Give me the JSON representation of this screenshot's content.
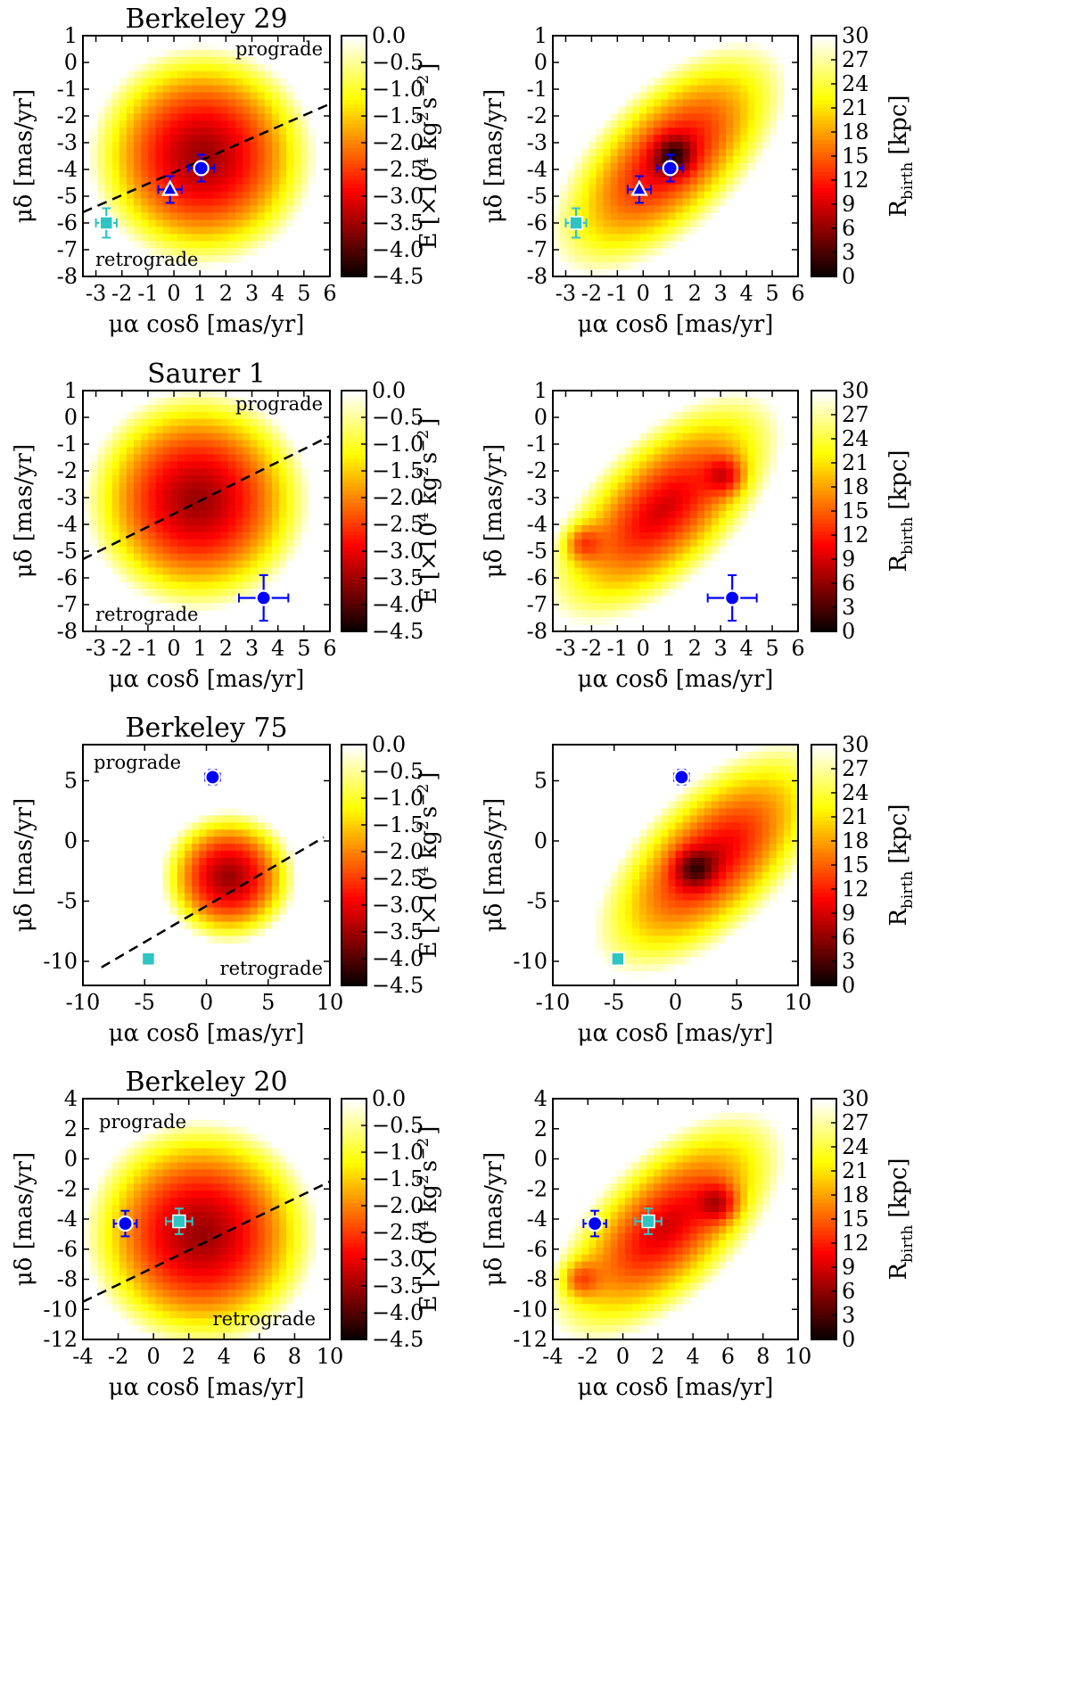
{
  "figure_title": "",
  "chart_data": [
    {
      "title": "Berkeley 29",
      "xlabel": "μα cosδ [mas/yr]",
      "ylabel": "μδ [mas/yr]",
      "xlim": [
        -3.5,
        6
      ],
      "ylim": [
        -8,
        1
      ],
      "xticks": [
        -3,
        -2,
        -1,
        0,
        1,
        2,
        3,
        4,
        5,
        6
      ],
      "yticks": [
        1,
        0,
        -1,
        -2,
        -3,
        -4,
        -5,
        -6,
        -7,
        -8
      ],
      "annotations": {
        "prograde": "prograde",
        "retrograde": "retrograde"
      },
      "divider_line": {
        "x": [
          -3.5,
          6
        ],
        "y": [
          -5.6,
          -1.55
        ]
      },
      "energy_map": {
        "center": [
          1.1,
          -3.5
        ],
        "radius": 4.4
      },
      "rbirth_map": {
        "center": [
          1.0,
          -3.6
        ],
        "dark_spots": [
          [
            1.2,
            -3.5
          ]
        ]
      },
      "points": [
        {
          "name": "cluster (blue circle)",
          "marker": "circle",
          "color": "#0000ff",
          "x": 1.05,
          "y": -3.95,
          "xerr": 0.5,
          "yerr": 0.5
        },
        {
          "name": "cluster (blue triangle)",
          "marker": "triangle",
          "color": "#0000ff",
          "x": -0.15,
          "y": -4.75,
          "xerr": 0.45,
          "yerr": 0.5
        },
        {
          "name": "cluster (cyan square)",
          "marker": "square",
          "color": "#2ec4c4",
          "x": -2.6,
          "y": -6.0,
          "xerr": 0.4,
          "yerr": 0.55
        }
      ]
    },
    {
      "title": "Saurer 1",
      "xlabel": "μα cosδ [mas/yr]",
      "ylabel": "μδ [mas/yr]",
      "xlim": [
        -3.5,
        6
      ],
      "ylim": [
        -8,
        1
      ],
      "xticks": [
        -3,
        -2,
        -1,
        0,
        1,
        2,
        3,
        4,
        5,
        6
      ],
      "yticks": [
        1,
        0,
        -1,
        -2,
        -3,
        -4,
        -5,
        -6,
        -7,
        -8
      ],
      "annotations": {
        "prograde": "prograde",
        "retrograde": "retrograde"
      },
      "divider_line": {
        "x": [
          -3.5,
          6
        ],
        "y": [
          -5.3,
          -0.7
        ]
      },
      "energy_map": {
        "center": [
          0.9,
          -3.1
        ],
        "radius": 4.4
      },
      "rbirth_map": {
        "center": [
          0.8,
          -3.4
        ],
        "dark_spots": [
          [
            3.2,
            -2.2
          ],
          [
            -2.4,
            -4.7
          ]
        ]
      },
      "points": [
        {
          "name": "cluster (blue circle)",
          "marker": "circle",
          "color": "#0000ff",
          "x": 3.45,
          "y": -6.75,
          "xerr": 0.95,
          "yerr": 0.85
        }
      ]
    },
    {
      "title": "Berkeley 75",
      "xlabel": "μα cosδ [mas/yr]",
      "ylabel": "μδ [mas/yr]",
      "xlim": [
        -10,
        10
      ],
      "ylim": [
        -12,
        8
      ],
      "xticks": [
        -10,
        -5,
        0,
        5,
        10
      ],
      "yticks": [
        5,
        0,
        -5,
        -10
      ],
      "annotations": {
        "prograde": "prograde",
        "retrograde": "retrograde"
      },
      "divider_line": {
        "x": [
          -8.5,
          9.5
        ],
        "y": [
          -10.5,
          0.3
        ]
      },
      "energy_map": {
        "center": [
          1.8,
          -3.0
        ],
        "radius": 5.6
      },
      "rbirth_map": {
        "center": [
          3.0,
          -1.5
        ],
        "dark_spots": [
          [
            1.5,
            -2.3
          ]
        ]
      },
      "points": [
        {
          "name": "cluster (blue circle)",
          "marker": "circle",
          "color": "#0000ff",
          "x": 0.5,
          "y": 5.3,
          "xerr": 0.6,
          "yerr": 0.6
        },
        {
          "name": "cluster (cyan square)",
          "marker": "square",
          "color": "#2ec4c4",
          "x": -4.7,
          "y": -9.8,
          "xerr": 0,
          "yerr": 0
        }
      ]
    },
    {
      "title": "Berkeley 20",
      "xlabel": "μα cosδ [mas/yr]",
      "ylabel": "μδ [mas/yr]",
      "xlim": [
        -4,
        10
      ],
      "ylim": [
        -12,
        4
      ],
      "xticks": [
        -4,
        -2,
        0,
        2,
        4,
        6,
        8,
        10
      ],
      "yticks": [
        4,
        2,
        0,
        -2,
        -4,
        -6,
        -8,
        -10,
        -12
      ],
      "annotations": {
        "prograde": "prograde",
        "retrograde": "retrograde"
      },
      "divider_line": {
        "x": [
          -4,
          10
        ],
        "y": [
          -9.5,
          -1.5
        ]
      },
      "energy_map": {
        "center": [
          2.7,
          -5.0
        ],
        "radius": 6.7
      },
      "rbirth_map": {
        "center": [
          2.5,
          -4.5
        ],
        "dark_spots": [
          [
            5.5,
            -3.0
          ],
          [
            -2.5,
            -8.0
          ]
        ]
      },
      "points": [
        {
          "name": "cluster (blue circle)",
          "marker": "circle",
          "color": "#0000ff",
          "x": -1.6,
          "y": -4.3,
          "xerr": 0.65,
          "yerr": 0.85
        },
        {
          "name": "cluster (cyan square)",
          "marker": "square",
          "color": "#2ec4c4",
          "x": 1.45,
          "y": -4.15,
          "xerr": 0.75,
          "yerr": 0.85
        }
      ]
    }
  ],
  "colorbars": {
    "energy": {
      "label_main": "E [",
      "label_factor": "×10",
      "label_exp": "4",
      "label_units": "kg",
      "label_units_exp1": "2",
      "label_units_mid": "s",
      "label_units_exp2": "−2",
      "label_end": "]",
      "range": [
        -4.5,
        0.0
      ],
      "ticks": [
        "0.0",
        "−0.5",
        "−1.0",
        "−1.5",
        "−2.0",
        "−2.5",
        "−3.0",
        "−3.5",
        "−4.0",
        "−4.5"
      ]
    },
    "rbirth": {
      "label_main": "R",
      "label_sub": "birth",
      "label_units": "[kpc]",
      "range": [
        0,
        30
      ],
      "ticks": [
        "30",
        "27",
        "24",
        "21",
        "18",
        "15",
        "12",
        "9",
        "6",
        "3",
        "0"
      ]
    }
  },
  "colors": {
    "cyan": "#2ec4c4",
    "blue": "#0000ff",
    "divider": "#000000"
  }
}
